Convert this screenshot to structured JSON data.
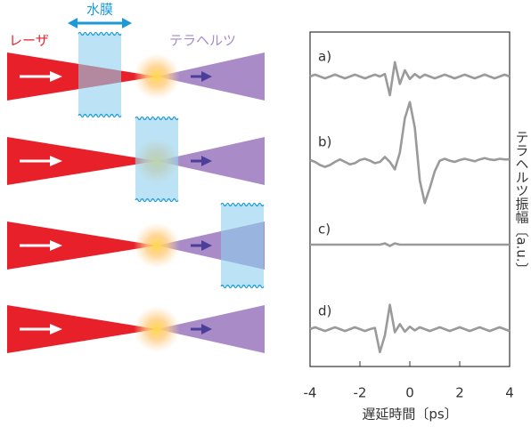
{
  "diagram": {
    "water_label": "水膜",
    "laser_label": "レーザ",
    "thz_label": "テラヘルツ"
  },
  "chart_data": [
    {
      "type": "line",
      "x": [
        -4,
        -3.8,
        -3.6,
        -3.4,
        -3.2,
        -3,
        -2.8,
        -2.6,
        -2.4,
        -2.2,
        -2,
        -1.8,
        -1.6,
        -1.4,
        -1.2,
        -1,
        -0.8,
        -0.6,
        -0.4,
        -0.2,
        0,
        0.2,
        0.4,
        0.6,
        0.8,
        1,
        1.2,
        1.4,
        1.6,
        1.8,
        2,
        2.2,
        2.4,
        2.6,
        2.8,
        3,
        3.2,
        3.4,
        3.6,
        3.8,
        4
      ],
      "xlim": [
        -4,
        4
      ],
      "ylim": [
        -1,
        1
      ],
      "series": [
        {
          "name": "a)",
          "color": "#9a9a9a",
          "values": [
            0,
            0.03,
            0,
            -0.03,
            0,
            0.03,
            0,
            -0.03,
            0,
            0.03,
            0,
            -0.03,
            0,
            0.03,
            0,
            0.04,
            -0.3,
            0.23,
            -0.12,
            0.1,
            -0.04,
            0.04,
            -0.02,
            0.03,
            0,
            -0.03,
            0,
            0.03,
            0,
            -0.03,
            0,
            0.03,
            0,
            -0.03,
            0,
            0.03,
            0,
            -0.03,
            0,
            0.03,
            0
          ]
        }
      ]
    },
    {
      "type": "line",
      "x": [
        -4,
        -3.8,
        -3.6,
        -3.4,
        -3.2,
        -3,
        -2.8,
        -2.6,
        -2.4,
        -2.2,
        -2,
        -1.8,
        -1.6,
        -1.4,
        -1.2,
        -1,
        -0.8,
        -0.6,
        -0.4,
        -0.2,
        0,
        0.2,
        0.4,
        0.6,
        0.8,
        1,
        1.2,
        1.4,
        1.6,
        1.8,
        2,
        2.2,
        2.4,
        2.6,
        2.8,
        3,
        3.2,
        3.4,
        3.6,
        3.8,
        4
      ],
      "xlim": [
        -4,
        4
      ],
      "ylim": [
        -1,
        1
      ],
      "series": [
        {
          "name": "b)",
          "color": "#9a9a9a",
          "values": [
            0.03,
            0,
            -0.05,
            -0.08,
            -0.05,
            0,
            0.04,
            0,
            -0.04,
            -0.02,
            0.03,
            0.05,
            0.02,
            -0.02,
            0,
            0.08,
            0,
            -0.12,
            0.15,
            0.7,
            0.96,
            0.55,
            -0.3,
            -0.66,
            -0.42,
            -0.15,
            0.02,
            0.05,
            0.02,
            0,
            0.03,
            0.05,
            0.03,
            0.01,
            0.04,
            0.06,
            0.04,
            0.03,
            0.05,
            0.04,
            0.04
          ]
        }
      ]
    },
    {
      "type": "line",
      "x": [
        -4,
        -3.8,
        -3.6,
        -3.4,
        -3.2,
        -3,
        -2.8,
        -2.6,
        -2.4,
        -2.2,
        -2,
        -1.8,
        -1.6,
        -1.4,
        -1.2,
        -1,
        -0.8,
        -0.6,
        -0.4,
        -0.2,
        0,
        0.2,
        0.4,
        0.6,
        0.8,
        1,
        1.2,
        1.4,
        1.6,
        1.8,
        2,
        2.2,
        2.4,
        2.6,
        2.8,
        3,
        3.2,
        3.4,
        3.6,
        3.8,
        4
      ],
      "xlim": [
        -4,
        4
      ],
      "ylim": [
        -1,
        1
      ],
      "series": [
        {
          "name": "c)",
          "color": "#9a9a9a",
          "values": [
            0,
            0,
            0,
            0,
            0,
            0,
            0,
            0,
            0,
            0,
            0,
            0,
            0,
            0,
            0,
            0.02,
            -0.02,
            0.02,
            0,
            0,
            0,
            0,
            0,
            0,
            0,
            0,
            0,
            0,
            0,
            0,
            0,
            0,
            0,
            0,
            0,
            0,
            0,
            0,
            0,
            0,
            0
          ]
        }
      ]
    },
    {
      "type": "line",
      "x": [
        -4,
        -3.8,
        -3.6,
        -3.4,
        -3.2,
        -3,
        -2.8,
        -2.6,
        -2.4,
        -2.2,
        -2,
        -1.8,
        -1.6,
        -1.4,
        -1.2,
        -1,
        -0.8,
        -0.6,
        -0.4,
        -0.2,
        0,
        0.2,
        0.4,
        0.6,
        0.8,
        1,
        1.2,
        1.4,
        1.6,
        1.8,
        2,
        2.2,
        2.4,
        2.6,
        2.8,
        3,
        3.2,
        3.4,
        3.6,
        3.8,
        4
      ],
      "xlim": [
        -4,
        4
      ],
      "ylim": [
        -1,
        1
      ],
      "xticks": [
        -4,
        -2,
        0,
        2,
        4
      ],
      "xlabel": "遅延時間〔ps〕",
      "ylabel": "テラヘルツ振幅〔a.u.〕",
      "series": [
        {
          "name": "d)",
          "color": "#9a9a9a",
          "values": [
            0,
            0.03,
            0,
            -0.03,
            0,
            0.03,
            0,
            -0.03,
            0,
            0.03,
            0,
            -0.03,
            0,
            0.02,
            -0.37,
            -0.1,
            0.39,
            -0.05,
            0.08,
            -0.04,
            0.04,
            -0.02,
            0.03,
            0,
            -0.03,
            0,
            0.03,
            0,
            -0.03,
            0,
            0.03,
            0,
            -0.03,
            0,
            0.03,
            0,
            -0.03,
            0,
            0.03,
            0,
            -0.03
          ]
        }
      ]
    }
  ]
}
